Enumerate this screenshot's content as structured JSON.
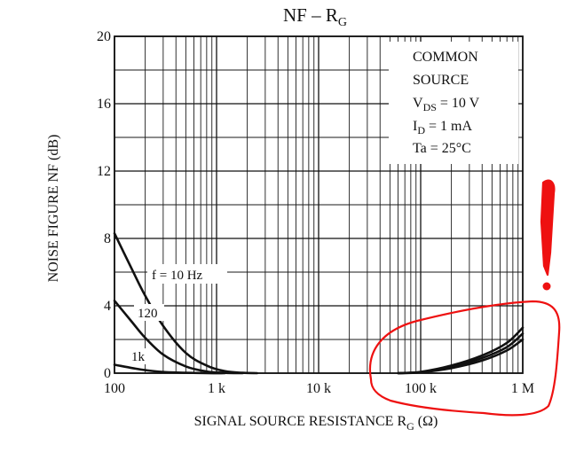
{
  "chart_data": {
    "type": "line",
    "title": "NF – RG",
    "xlabel": "SIGNAL SOURCE RESISTANCE   RG   (Ω)",
    "ylabel": "NOISE FIGURE   NF   (dB)",
    "x_scale": "log",
    "xlim": [
      100,
      1000000
    ],
    "ylim": [
      0,
      20
    ],
    "x_ticks": [
      100,
      1000,
      10000,
      100000,
      1000000
    ],
    "x_tick_labels": [
      "100",
      "1 k",
      "10 k",
      "100 k",
      "1 M"
    ],
    "y_ticks": [
      0,
      4,
      8,
      12,
      16,
      20
    ],
    "y_tick_labels": [
      "0",
      "4",
      "8",
      "12",
      "16",
      "20"
    ],
    "grid": true,
    "conditions": [
      "COMMON",
      "SOURCE",
      "VDS = 10 V",
      "ID = 1 mA",
      "Ta = 25°C"
    ],
    "series": [
      {
        "name": "f = 10 Hz",
        "x": [
          100,
          150,
          200,
          300,
          500,
          800,
          1200,
          1800,
          2500
        ],
        "y": [
          8.3,
          6.1,
          4.6,
          2.8,
          1.2,
          0.45,
          0.12,
          0.02,
          0.0
        ]
      },
      {
        "name": "120",
        "x": [
          100,
          150,
          200,
          300,
          500,
          800,
          1200,
          1800
        ],
        "y": [
          4.3,
          3.0,
          2.1,
          1.1,
          0.4,
          0.1,
          0.02,
          0.0
        ]
      },
      {
        "name": "1k",
        "x": [
          100,
          150,
          200,
          300,
          500,
          800,
          1200
        ],
        "y": [
          0.5,
          0.3,
          0.18,
          0.07,
          0.02,
          0.0,
          0.0
        ]
      },
      {
        "name": "",
        "x": [
          60000,
          100000,
          200000,
          400000,
          700000,
          1000000
        ],
        "y": [
          0.0,
          0.08,
          0.45,
          1.05,
          1.8,
          2.7
        ]
      },
      {
        "name": "",
        "x": [
          60000,
          100000,
          200000,
          400000,
          700000,
          1000000
        ],
        "y": [
          0.0,
          0.06,
          0.38,
          0.9,
          1.55,
          2.35
        ]
      },
      {
        "name": "",
        "x": [
          60000,
          100000,
          200000,
          400000,
          700000,
          1000000
        ],
        "y": [
          0.0,
          0.05,
          0.3,
          0.75,
          1.35,
          2.0
        ]
      }
    ],
    "curve_labels": [
      "f = 10 Hz",
      "120",
      "1k"
    ],
    "markup_color": "#ee1111"
  }
}
